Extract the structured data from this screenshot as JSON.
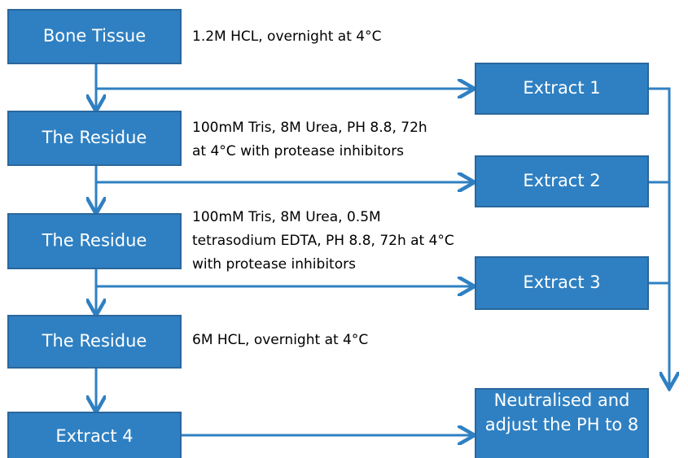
{
  "nodes": [
    {
      "label": [
        "Bone Tissue"
      ]
    },
    {
      "label": [
        "The Residue"
      ]
    },
    {
      "label": [
        "The Residue"
      ]
    },
    {
      "label": [
        "The Residue"
      ]
    },
    {
      "label": [
        "Extract 4"
      ]
    },
    {
      "label": [
        "Extract 1"
      ]
    },
    {
      "label": [
        "Extract 2"
      ]
    },
    {
      "label": [
        "Extract 3"
      ]
    },
    {
      "label": [
        "Neutralised and",
        "adjust the PH to 8"
      ]
    }
  ],
  "annotations": [
    {
      "lines": [
        "1.2M HCL, overnight at 4°C"
      ]
    },
    {
      "lines": [
        "100mM Tris, 8M Urea, PH 8.8, 72h",
        "at 4°C with protease inhibitors"
      ]
    },
    {
      "lines": [
        "100mM Tris, 8M Urea, 0.5M",
        "tetrasodium EDTA, PH 8.8, 72h at 4°C",
        "with protease inhibitors"
      ]
    },
    {
      "lines": [
        "6M HCL, overnight at 4°C"
      ]
    }
  ]
}
